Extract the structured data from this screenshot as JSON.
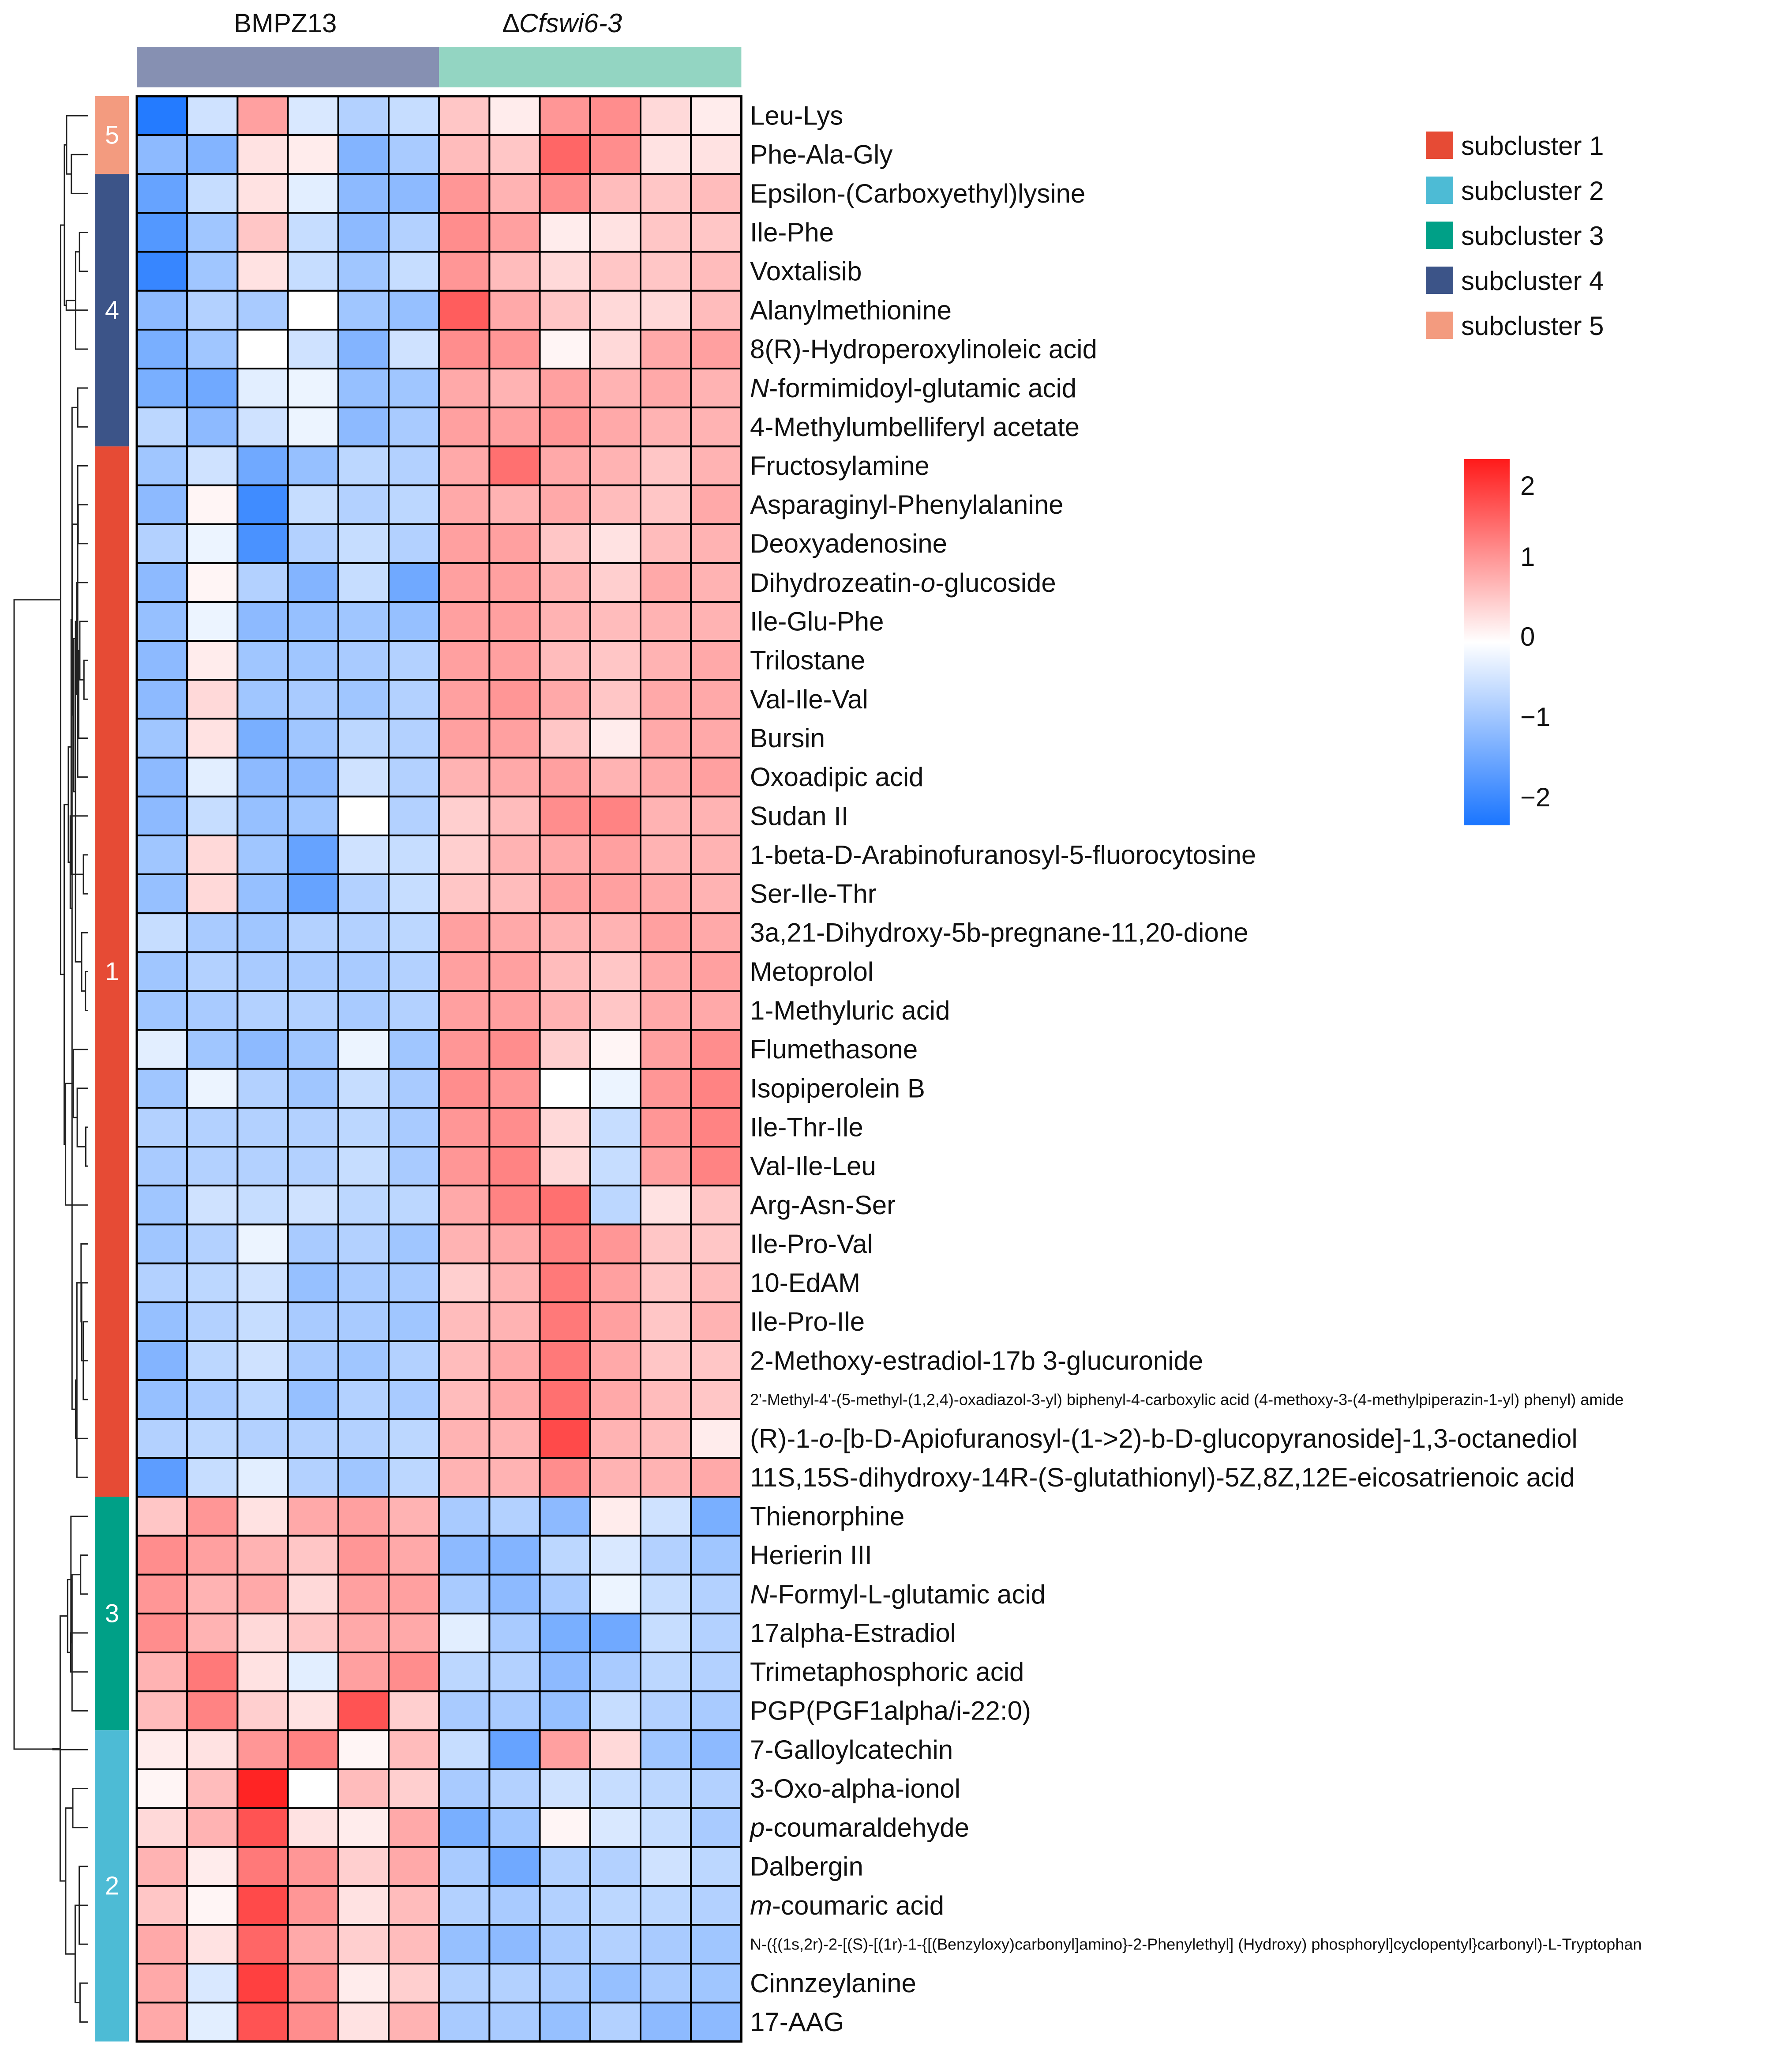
{
  "chart_data": {
    "type": "heatmap",
    "title": "",
    "groups": [
      {
        "name": "BMPZ13",
        "italic_part": "",
        "color": "#8690B2",
        "columns": 6
      },
      {
        "name": "∆Cfswi6-3",
        "italic_part": "Cfswi6-3",
        "prefix": "∆",
        "color": "#93D5C2",
        "columns": 6
      }
    ],
    "colorbar": {
      "min": -2.4,
      "max": 2.4,
      "ticks": [
        2,
        1,
        0,
        -1,
        -2
      ],
      "tick_labels": [
        "2",
        "1",
        "0",
        "−1",
        "−2"
      ],
      "colors": [
        "#1A75FF",
        "#FFFFFF",
        "#FF1A1A"
      ]
    },
    "subclusters": [
      {
        "id": 1,
        "label": "subcluster 1",
        "color": "#E64B35"
      },
      {
        "id": 2,
        "label": "subcluster 2",
        "color": "#4DBBD5"
      },
      {
        "id": 3,
        "label": "subcluster 3",
        "color": "#00A087"
      },
      {
        "id": 4,
        "label": "subcluster 4",
        "color": "#3C5488"
      },
      {
        "id": 5,
        "label": "subcluster 5",
        "color": "#F39B7F"
      }
    ],
    "row_cluster_blocks": [
      {
        "cluster": 5,
        "label": "5",
        "rows": 2
      },
      {
        "cluster": 4,
        "label": "4",
        "rows": 7
      },
      {
        "cluster": 1,
        "label": "1",
        "rows": 27
      },
      {
        "cluster": 3,
        "label": "3",
        "rows": 6
      },
      {
        "cluster": 2,
        "label": "2",
        "rows": 8
      }
    ],
    "rows": [
      {
        "label": "Leu-Lys",
        "values": [
          -2.3,
          -0.5,
          1.0,
          -0.4,
          -0.8,
          -0.6,
          0.6,
          0.2,
          1.1,
          1.2,
          0.4,
          0.2
        ]
      },
      {
        "label": "Phe-Ala-Gly",
        "values": [
          -1.2,
          -1.3,
          0.3,
          0.2,
          -1.3,
          -0.9,
          0.7,
          0.6,
          1.6,
          1.2,
          0.3,
          0.3
        ]
      },
      {
        "label": "Epsilon-(Carboxyethyl)lysine",
        "values": [
          -1.6,
          -0.6,
          0.3,
          -0.3,
          -1.2,
          -1.2,
          1.1,
          0.8,
          1.2,
          0.7,
          0.6,
          0.7
        ]
      },
      {
        "label": "Ile-Phe",
        "values": [
          -1.8,
          -1.0,
          0.6,
          -0.6,
          -1.2,
          -0.8,
          1.2,
          1.0,
          0.2,
          0.3,
          0.6,
          0.6
        ]
      },
      {
        "label": "Voxtalisib",
        "values": [
          -2.1,
          -1.0,
          0.3,
          -0.6,
          -1.0,
          -0.6,
          1.1,
          0.7,
          0.4,
          0.6,
          0.6,
          0.7
        ]
      },
      {
        "label": "Alanylmethionine",
        "values": [
          -1.2,
          -0.8,
          -0.9,
          0.0,
          -1.0,
          -1.1,
          1.7,
          0.9,
          0.6,
          0.4,
          0.4,
          0.7
        ]
      },
      {
        "label": "8(R)-Hydroperoxylinoleic acid",
        "values": [
          -1.4,
          -1.0,
          0.0,
          -0.5,
          -1.3,
          -0.5,
          1.2,
          1.1,
          0.1,
          0.4,
          0.9,
          1.0
        ]
      },
      {
        "label": "N-formimidoyl-glutamic acid",
        "italic_part": "N",
        "values": [
          -1.4,
          -1.5,
          -0.3,
          -0.2,
          -1.1,
          -1.0,
          0.9,
          0.8,
          1.0,
          0.8,
          0.9,
          0.8
        ]
      },
      {
        "label": "4-Methylumbelliferyl acetate",
        "values": [
          -0.7,
          -1.2,
          -0.5,
          -0.2,
          -1.2,
          -0.9,
          1.0,
          1.0,
          1.1,
          0.9,
          0.8,
          0.8
        ]
      },
      {
        "label": "Fructosylamine",
        "values": [
          -1.0,
          -0.5,
          -1.5,
          -1.1,
          -0.7,
          -0.8,
          0.9,
          1.5,
          0.9,
          0.8,
          0.6,
          0.8
        ]
      },
      {
        "label": "Asparaginyl-Phenylalanine",
        "values": [
          -1.2,
          0.1,
          -2.0,
          -0.6,
          -0.8,
          -0.7,
          0.9,
          0.8,
          0.9,
          0.7,
          0.6,
          0.9
        ]
      },
      {
        "label": "Deoxyadenosine",
        "values": [
          -0.8,
          -0.2,
          -1.9,
          -0.8,
          -0.6,
          -0.8,
          1.0,
          1.0,
          0.6,
          0.3,
          0.7,
          0.8
        ]
      },
      {
        "label": "Dihydrozeatin-o-glucoside",
        "italic_part": "o",
        "values": [
          -1.2,
          0.1,
          -0.8,
          -1.3,
          -0.6,
          -1.5,
          1.0,
          1.0,
          0.8,
          0.5,
          0.9,
          0.8
        ]
      },
      {
        "label": "Ile-Glu-Phe",
        "values": [
          -1.1,
          -0.2,
          -1.2,
          -1.1,
          -1.0,
          -1.1,
          1.0,
          1.0,
          0.8,
          0.7,
          0.8,
          0.8
        ]
      },
      {
        "label": "Trilostane",
        "values": [
          -1.2,
          0.2,
          -1.0,
          -1.0,
          -0.9,
          -0.8,
          1.0,
          1.0,
          0.7,
          0.6,
          0.8,
          0.9
        ]
      },
      {
        "label": "Val-Ile-Val",
        "values": [
          -1.2,
          0.4,
          -1.0,
          -0.9,
          -1.0,
          -0.8,
          1.0,
          1.1,
          0.9,
          0.6,
          0.9,
          0.9
        ]
      },
      {
        "label": "Bursin",
        "values": [
          -1.0,
          0.3,
          -1.4,
          -1.0,
          -0.7,
          -0.8,
          1.0,
          1.0,
          0.6,
          0.2,
          0.9,
          0.9
        ]
      },
      {
        "label": "Oxoadipic acid",
        "values": [
          -1.2,
          -0.3,
          -1.2,
          -1.2,
          -0.5,
          -0.8,
          0.8,
          0.9,
          1.0,
          0.8,
          0.9,
          1.0
        ]
      },
      {
        "label": "Sudan II",
        "values": [
          -1.2,
          -0.6,
          -1.1,
          -1.0,
          0.0,
          -0.8,
          0.5,
          0.7,
          1.2,
          1.3,
          0.8,
          0.8
        ]
      },
      {
        "label": "1-beta-D-Arabinofuranosyl-5-fluorocytosine",
        "values": [
          -1.0,
          0.4,
          -1.0,
          -1.6,
          -0.5,
          -0.6,
          0.5,
          0.8,
          0.9,
          1.0,
          0.8,
          0.8
        ]
      },
      {
        "label": "Ser-Ile-Thr",
        "values": [
          -1.1,
          0.4,
          -1.1,
          -1.6,
          -0.8,
          -0.6,
          0.6,
          0.7,
          1.0,
          1.0,
          0.9,
          0.8
        ]
      },
      {
        "label": "3a,21-Dihydroxy-5b-pregnane-11,20-dione",
        "values": [
          -0.6,
          -0.9,
          -1.0,
          -0.8,
          -0.8,
          -0.7,
          1.0,
          0.9,
          0.8,
          0.8,
          1.0,
          0.9
        ]
      },
      {
        "label": "Metoprolol",
        "values": [
          -1.0,
          -0.8,
          -0.9,
          -0.9,
          -0.9,
          -0.8,
          1.0,
          1.0,
          0.7,
          0.6,
          0.9,
          1.0
        ]
      },
      {
        "label": "1-Methyluric acid",
        "values": [
          -1.0,
          -0.9,
          -0.8,
          -0.8,
          -0.9,
          -0.8,
          1.0,
          1.0,
          0.8,
          0.6,
          0.9,
          0.9
        ]
      },
      {
        "label": "Flumethasone",
        "values": [
          -0.3,
          -1.0,
          -1.2,
          -1.0,
          -0.2,
          -1.0,
          1.1,
          1.2,
          0.5,
          0.1,
          1.0,
          1.2
        ]
      },
      {
        "label": "Isopiperolein B",
        "values": [
          -1.0,
          -0.2,
          -0.8,
          -1.0,
          -0.6,
          -0.9,
          1.2,
          1.1,
          0.0,
          -0.2,
          1.1,
          1.3
        ]
      },
      {
        "label": "Ile-Thr-Ile",
        "values": [
          -0.8,
          -0.8,
          -0.8,
          -0.8,
          -0.7,
          -0.9,
          1.1,
          1.2,
          0.4,
          -0.6,
          1.1,
          1.3
        ]
      },
      {
        "label": "Val-Ile-Leu",
        "values": [
          -0.9,
          -0.8,
          -0.8,
          -0.8,
          -0.6,
          -0.9,
          1.1,
          1.3,
          0.4,
          -0.6,
          1.0,
          1.3
        ]
      },
      {
        "label": "Arg-Asn-Ser",
        "values": [
          -1.0,
          -0.5,
          -0.6,
          -0.5,
          -0.7,
          -0.7,
          0.9,
          1.3,
          1.5,
          -0.7,
          0.3,
          0.6
        ]
      },
      {
        "label": "Ile-Pro-Val",
        "values": [
          -1.0,
          -0.8,
          -0.2,
          -0.9,
          -0.8,
          -1.0,
          0.8,
          0.9,
          1.3,
          1.1,
          0.6,
          0.6
        ]
      },
      {
        "label": "10-EdAM",
        "values": [
          -0.8,
          -0.7,
          -0.5,
          -1.1,
          -0.9,
          -0.9,
          0.5,
          0.8,
          1.4,
          1.0,
          0.6,
          0.7
        ]
      },
      {
        "label": "Ile-Pro-Ile",
        "values": [
          -1.1,
          -0.8,
          -0.6,
          -0.9,
          -0.9,
          -1.0,
          0.7,
          0.8,
          1.4,
          1.0,
          0.6,
          0.8
        ]
      },
      {
        "label": "2-Methoxy-estradiol-17b 3-glucuronide",
        "values": [
          -1.3,
          -0.7,
          -0.5,
          -0.9,
          -1.0,
          -0.8,
          0.7,
          0.9,
          1.4,
          0.9,
          0.6,
          0.6
        ]
      },
      {
        "label": "2'-Methyl-4'-(5-methyl-(1,2,4)-oxadiazol-3-yl) biphenyl-4-carboxylic acid (4-methoxy-3-(4-methylpiperazin-1-yl) phenyl) amide",
        "small": true,
        "values": [
          -1.1,
          -0.9,
          -0.7,
          -1.1,
          -0.8,
          -0.9,
          0.7,
          0.9,
          1.5,
          0.9,
          0.7,
          0.6
        ]
      },
      {
        "label": "(R)-1-o-[b-D-Apiofuranosyl-(1->2)-b-D-glucopyranoside]-1,3-octanediol",
        "italic_part": "o",
        "values": [
          -0.8,
          -0.7,
          -0.8,
          -0.8,
          -0.8,
          -0.7,
          0.8,
          0.8,
          1.9,
          0.8,
          0.7,
          0.2
        ]
      },
      {
        "label": "11S,15S-dihydroxy-14R-(S-glutathionyl)-5Z,8Z,12E-eicosatrienoic acid",
        "values": [
          -1.7,
          -0.6,
          -0.3,
          -0.8,
          -1.0,
          -0.7,
          0.8,
          0.8,
          1.2,
          0.8,
          0.8,
          0.9
        ]
      },
      {
        "label": "Thienorphine",
        "values": [
          0.6,
          1.1,
          0.3,
          0.9,
          1.0,
          0.8,
          -0.9,
          -0.8,
          -1.2,
          0.2,
          -0.5,
          -1.4
        ]
      },
      {
        "label": "Herierin III",
        "values": [
          1.2,
          1.0,
          0.8,
          0.6,
          1.1,
          0.9,
          -1.2,
          -1.3,
          -0.7,
          -0.4,
          -0.8,
          -1.0
        ]
      },
      {
        "label": "N-Formyl-L-glutamic acid",
        "italic_part": "N",
        "values": [
          1.1,
          0.8,
          0.9,
          0.4,
          1.0,
          1.0,
          -0.9,
          -1.2,
          -0.9,
          -0.2,
          -0.6,
          -0.8
        ]
      },
      {
        "label": "17alpha-Estradiol",
        "values": [
          1.2,
          0.8,
          0.4,
          0.6,
          0.9,
          0.9,
          -0.3,
          -0.9,
          -1.4,
          -1.5,
          -0.6,
          -0.8
        ]
      },
      {
        "label": "Trimetaphosphoric acid",
        "values": [
          0.8,
          1.4,
          0.3,
          -0.3,
          1.0,
          1.2,
          -0.7,
          -0.8,
          -1.2,
          -0.9,
          -0.7,
          -0.8
        ]
      },
      {
        "label": "PGP(PGF1alpha/i-22:0)",
        "values": [
          0.7,
          1.3,
          0.5,
          0.3,
          1.8,
          0.5,
          -0.9,
          -0.9,
          -1.1,
          -0.6,
          -0.8,
          -0.9
        ]
      },
      {
        "label": "7-Galloylcatechin",
        "values": [
          0.2,
          0.3,
          1.1,
          1.3,
          0.1,
          0.7,
          -0.6,
          -1.6,
          1.0,
          0.4,
          -1.0,
          -1.2
        ]
      },
      {
        "label": "3-Oxo-alpha-ionol",
        "values": [
          0.1,
          0.7,
          2.3,
          0.0,
          0.7,
          0.5,
          -0.9,
          -0.8,
          -0.5,
          -0.6,
          -0.7,
          -0.8
        ]
      },
      {
        "label": "p-coumaraldehyde",
        "italic_part": "p",
        "values": [
          0.4,
          0.8,
          1.8,
          0.3,
          0.2,
          0.9,
          -1.4,
          -1.0,
          0.1,
          -0.4,
          -0.6,
          -0.9
        ]
      },
      {
        "label": "Dalbergin",
        "values": [
          0.8,
          0.2,
          1.4,
          1.1,
          0.5,
          0.9,
          -0.9,
          -1.5,
          -0.8,
          -0.8,
          -0.5,
          -0.7
        ]
      },
      {
        "label": "m-coumaric acid",
        "italic_part": "m",
        "values": [
          0.6,
          0.1,
          1.9,
          1.1,
          0.3,
          0.7,
          -0.8,
          -0.9,
          -0.8,
          -0.7,
          -0.7,
          -0.8
        ]
      },
      {
        "label": "N-({(1s,2r)-2-[(S)-[(1r)-1-{[(Benzyloxy)carbonyl]amino}-2-Phenylethyl] (Hydroxy) phosphoryl]cyclopentyl}carbonyl)-L-Tryptophan",
        "small": true,
        "values": [
          0.9,
          0.3,
          1.6,
          0.9,
          0.5,
          0.7,
          -1.1,
          -1.2,
          -0.9,
          -0.8,
          -0.9,
          -1.0
        ]
      },
      {
        "label": "Cinnzeylanine",
        "values": [
          0.9,
          -0.4,
          2.0,
          1.1,
          0.2,
          0.5,
          -0.8,
          -0.8,
          -0.9,
          -1.1,
          -0.9,
          -1.0
        ]
      },
      {
        "label": "17-AAG",
        "values": [
          0.9,
          -0.3,
          1.8,
          1.2,
          0.3,
          0.8,
          -0.9,
          -0.9,
          -1.1,
          -0.8,
          -1.2,
          -1.2
        ]
      }
    ]
  }
}
